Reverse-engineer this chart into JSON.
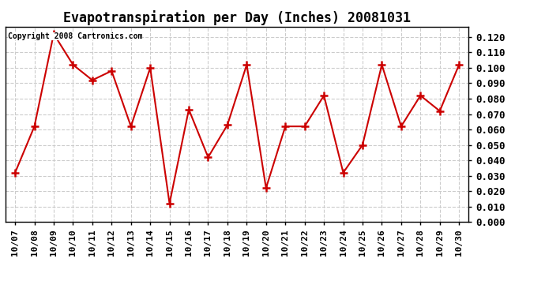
{
  "title": "Evapotranspiration per Day (Inches) 20081031",
  "copyright_text": "Copyright 2008 Cartronics.com",
  "dates": [
    "10/07",
    "10/08",
    "10/09",
    "10/10",
    "10/11",
    "10/12",
    "10/13",
    "10/14",
    "10/15",
    "10/16",
    "10/17",
    "10/18",
    "10/19",
    "10/20",
    "10/21",
    "10/22",
    "10/23",
    "10/24",
    "10/25",
    "10/26",
    "10/27",
    "10/28",
    "10/29",
    "10/30"
  ],
  "values": [
    0.032,
    0.062,
    0.122,
    0.102,
    0.092,
    0.098,
    0.062,
    0.1,
    0.012,
    0.073,
    0.042,
    0.063,
    0.102,
    0.022,
    0.062,
    0.062,
    0.082,
    0.032,
    0.05,
    0.102,
    0.062,
    0.082,
    0.072,
    0.102
  ],
  "line_color": "#cc0000",
  "marker": "+",
  "marker_size": 7,
  "marker_color": "#cc0000",
  "bg_color": "#ffffff",
  "plot_bg_color": "#ffffff",
  "grid_color": "#cccccc",
  "grid_style": "--",
  "ylim": [
    0.0,
    0.1267
  ],
  "yticks": [
    0.0,
    0.01,
    0.02,
    0.03,
    0.04,
    0.05,
    0.06,
    0.07,
    0.08,
    0.09,
    0.1,
    0.11,
    0.12
  ],
  "title_fontsize": 12,
  "copyright_fontsize": 7,
  "tick_fontsize": 8,
  "ytick_fontsize": 9
}
